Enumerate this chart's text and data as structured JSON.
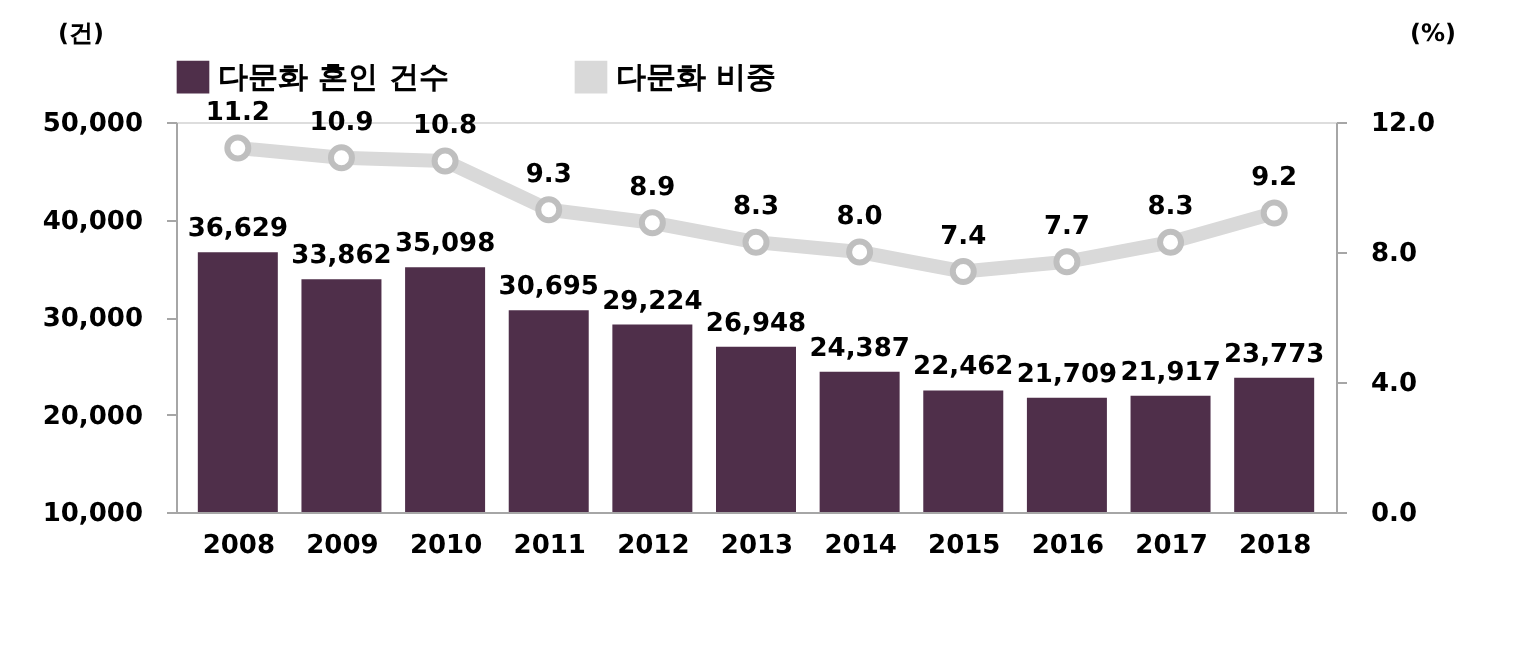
{
  "chart_data": {
    "type": "bar",
    "ylabel": "(건)",
    "y2label": "(%)",
    "categories": [
      "2008",
      "2009",
      "2010",
      "2011",
      "2012",
      "2013",
      "2014",
      "2015",
      "2016",
      "2017",
      "2018"
    ],
    "series": [
      {
        "name": "다문화 혼인 건수",
        "color": "#4f2f4a",
        "values": [
          36629,
          33862,
          35098,
          30695,
          29224,
          26948,
          24387,
          22462,
          21709,
          21917,
          23773
        ],
        "value_labels": [
          "36,629",
          "33,862",
          "35,098",
          "30,695",
          "29,224",
          "26,948",
          "24,387",
          "22,462",
          "21,709",
          "21,917",
          "23,773"
        ]
      },
      {
        "name": "다문화 비중",
        "type": "line",
        "axis": "y2",
        "color": "#d9d9d9",
        "marker": "circle",
        "values": [
          11.2,
          10.9,
          10.8,
          9.3,
          8.9,
          8.3,
          8.0,
          7.4,
          7.7,
          8.3,
          9.2
        ],
        "value_labels": [
          "11.2",
          "10.9",
          "10.8",
          "9.3",
          "8.9",
          "8.3",
          "8.0",
          "7.4",
          "7.7",
          "8.3",
          "9.2"
        ]
      }
    ],
    "ylim": [
      10000,
      50000
    ],
    "yticks": [
      {
        "value": 10000,
        "label": "10,000"
      },
      {
        "value": 20000,
        "label": "20,000"
      },
      {
        "value": 30000,
        "label": "30,000"
      },
      {
        "value": 40000,
        "label": "40,000"
      },
      {
        "value": 50000,
        "label": "50,000"
      }
    ],
    "y2lim": [
      0,
      12
    ],
    "y2ticks": [
      {
        "value": 0,
        "label": "0.0"
      },
      {
        "value": 4,
        "label": "4.0"
      },
      {
        "value": 8,
        "label": "8.0"
      },
      {
        "value": 12,
        "label": "12.0"
      }
    ],
    "grid": false,
    "legend": "top"
  }
}
